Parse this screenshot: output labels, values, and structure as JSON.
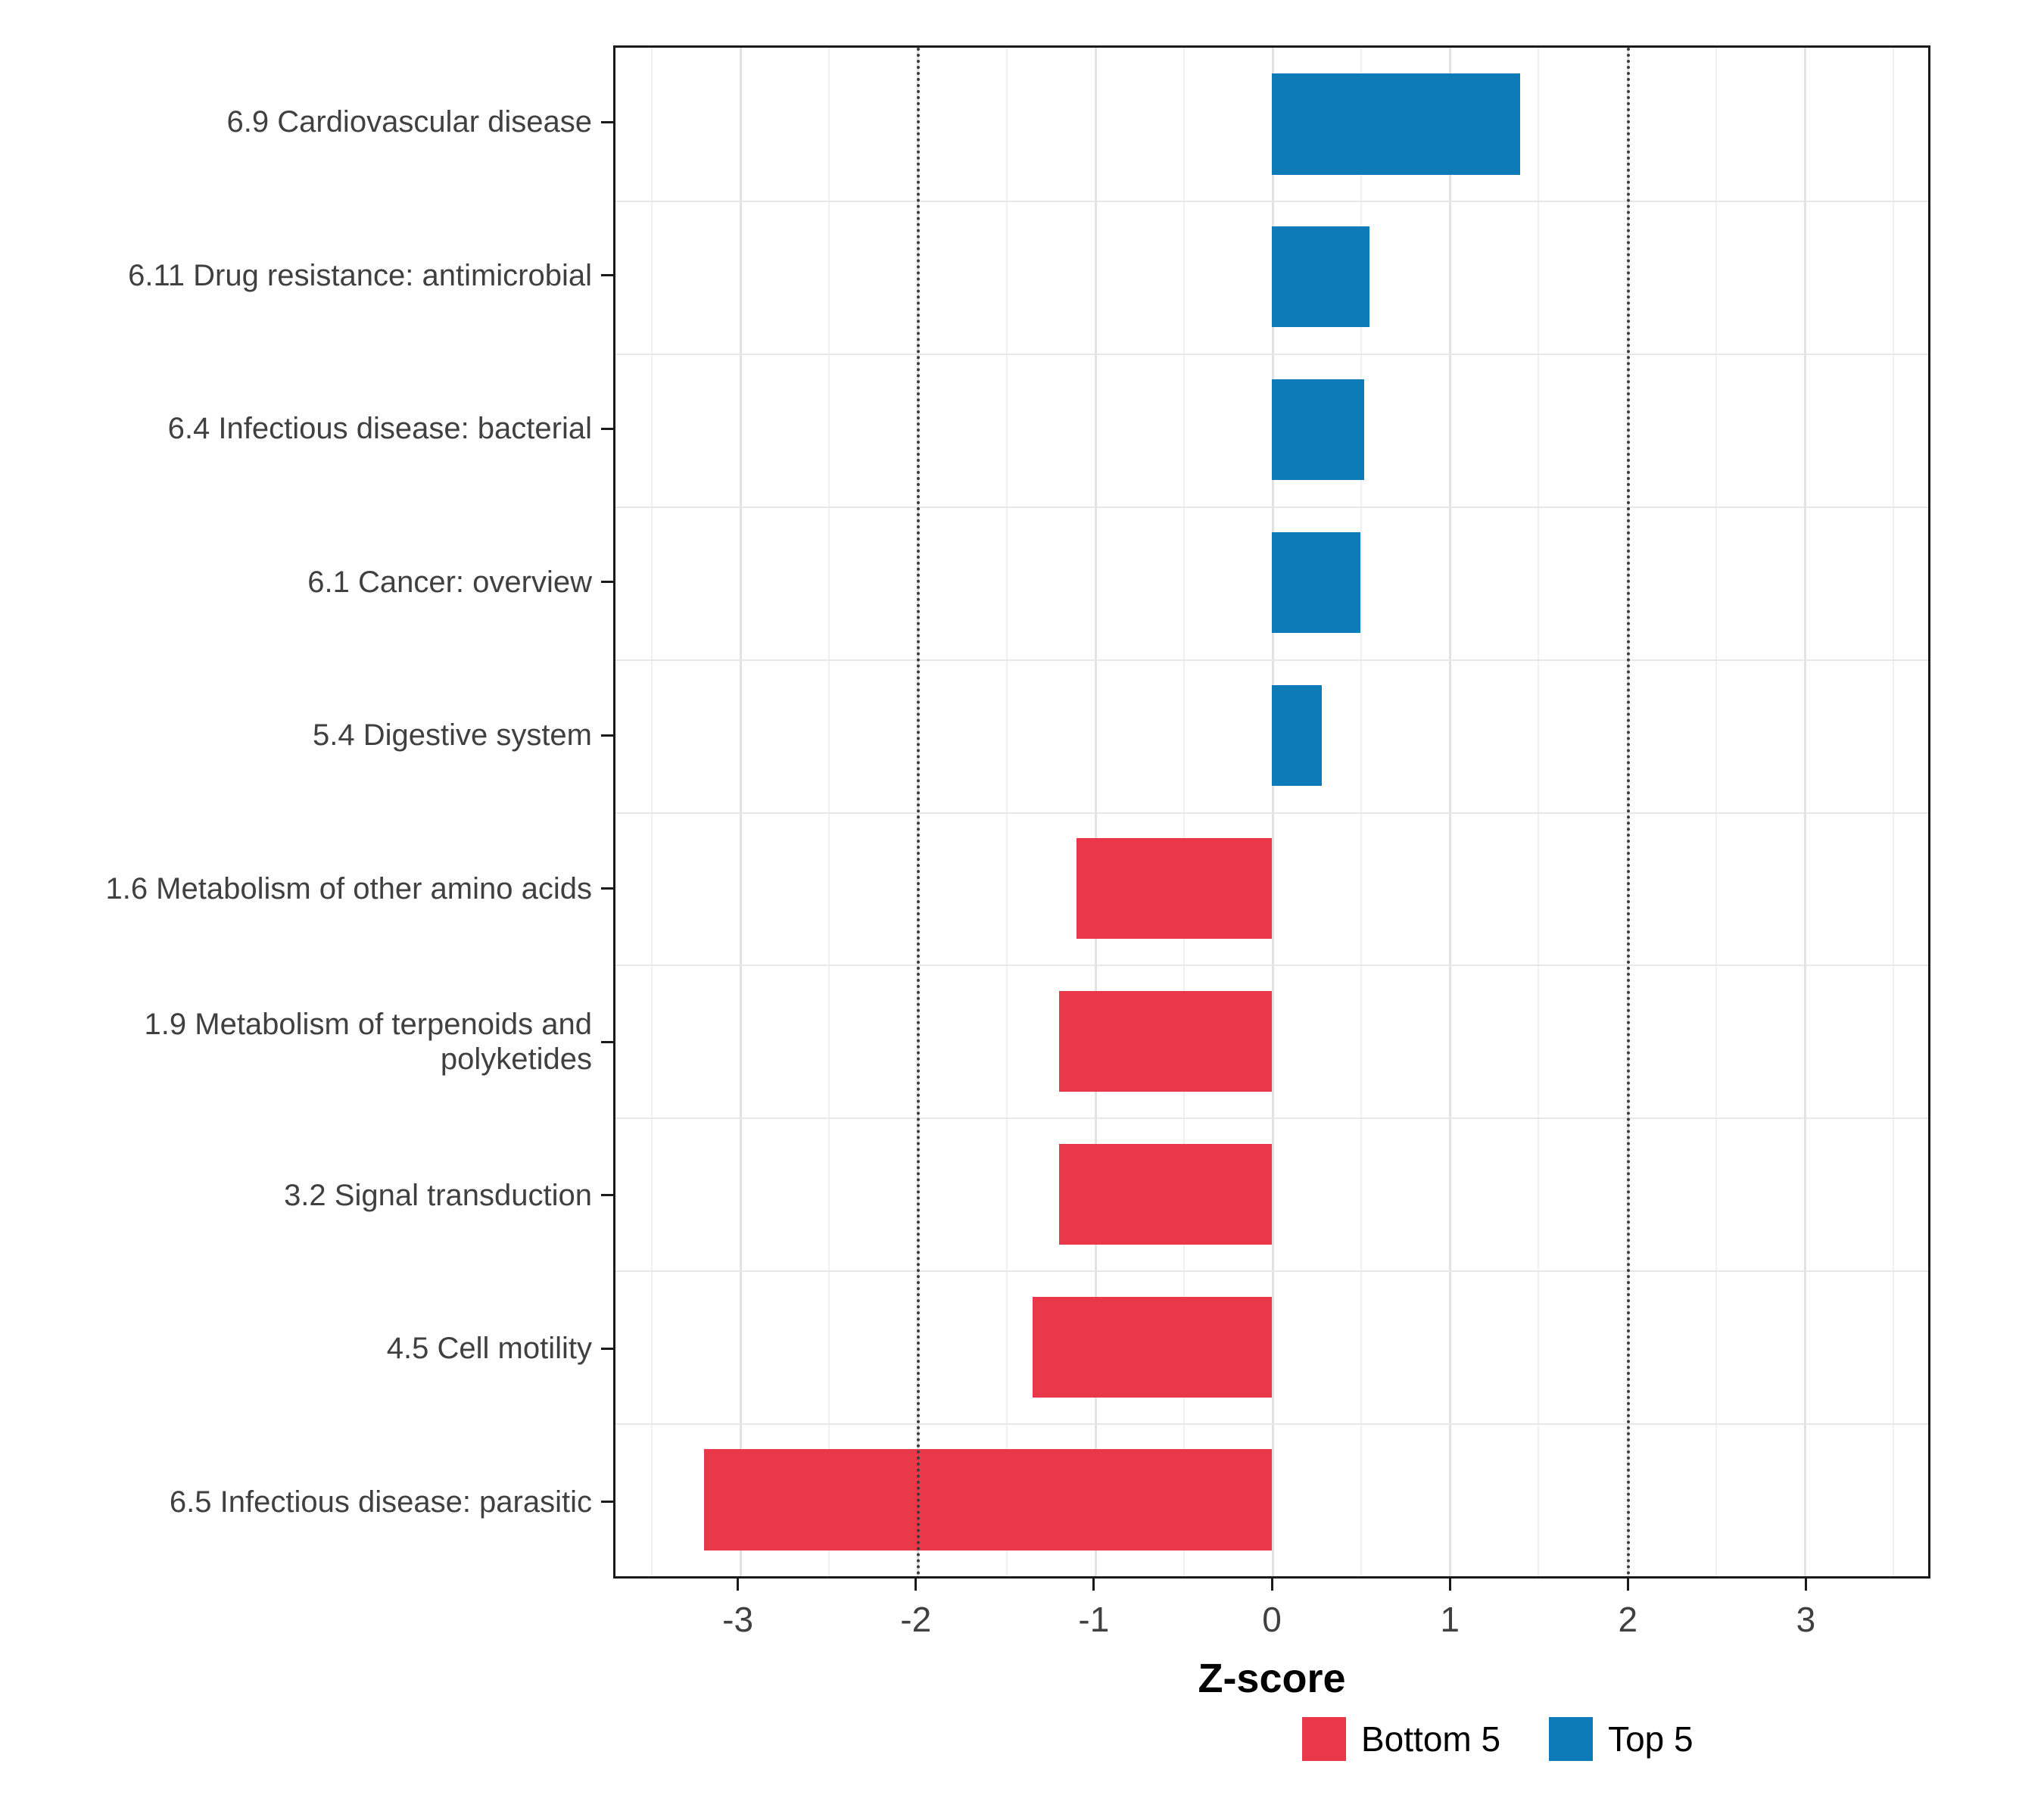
{
  "chart_data": {
    "type": "bar",
    "orientation": "horizontal",
    "title": "",
    "xlabel": "Z-score",
    "categories": [
      "6.9 Cardiovascular disease",
      "6.11 Drug resistance: antimicrobial",
      "6.4 Infectious disease: bacterial",
      "6.1 Cancer: overview",
      "5.4 Digestive system",
      "1.6 Metabolism of other amino acids",
      "1.9 Metabolism of terpenoids and polyketides",
      "3.2 Signal transduction",
      "4.5 Cell motility",
      "6.5 Infectious disease: parasitic"
    ],
    "values": [
      1.4,
      0.55,
      0.52,
      0.5,
      0.28,
      -1.1,
      -1.2,
      -1.2,
      -1.35,
      -3.2
    ],
    "groups": [
      "Top 5",
      "Top 5",
      "Top 5",
      "Top 5",
      "Top 5",
      "Bottom 5",
      "Bottom 5",
      "Bottom 5",
      "Bottom 5",
      "Bottom 5"
    ],
    "colors": {
      "Bottom 5": "#E8384A",
      "Top 5": "#0C7BB8"
    },
    "xlim": [
      -3.7,
      3.7
    ],
    "xticks": [
      -3,
      -2,
      -1,
      0,
      1,
      2,
      3
    ],
    "reference_lines": [
      -2,
      2
    ],
    "grid": true,
    "legend_position": "bottom",
    "legend": [
      {
        "label": "Bottom 5",
        "color": "#E8384A"
      },
      {
        "label": "Top 5",
        "color": "#0C7BB8"
      }
    ]
  }
}
